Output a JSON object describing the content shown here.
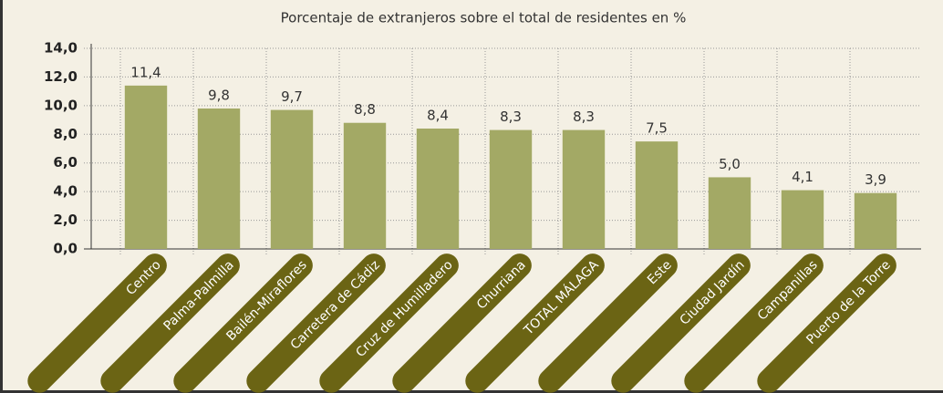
{
  "chart_data": {
    "type": "bar",
    "title": "Porcentaje de extranjeros sobre el total de residentes en %",
    "categories": [
      "Centro",
      "Palma-Palmilla",
      "Bailén-Miraflores",
      "Carretera de Cádiz",
      "Cruz de Humilladero",
      "Churriana",
      "TOTAL MÁLAGA",
      "Este",
      "Ciudad Jardín",
      "Campanillas",
      "Puerto de la Torre"
    ],
    "values": [
      11.4,
      9.8,
      9.7,
      8.8,
      8.4,
      8.3,
      8.3,
      7.5,
      5.0,
      4.1,
      3.9
    ],
    "value_labels": [
      "11,4",
      "9,8",
      "9,7",
      "8,8",
      "8,4",
      "8,3",
      "8,3",
      "7,5",
      "5,0",
      "4,1",
      "3,9"
    ],
    "color": "#a3a965",
    "ylim": [
      0,
      14
    ],
    "yticks": [
      {
        "value": 0,
        "label": "0,0"
      },
      {
        "value": 2,
        "label": "2,0"
      },
      {
        "value": 4,
        "label": "4,0"
      },
      {
        "value": 6,
        "label": "6,0"
      },
      {
        "value": 8,
        "label": "8,0"
      },
      {
        "value": 10,
        "label": "10,0"
      },
      {
        "value": 12,
        "label": "12,0"
      },
      {
        "value": 14,
        "label": "14,0"
      }
    ],
    "grid": true
  }
}
